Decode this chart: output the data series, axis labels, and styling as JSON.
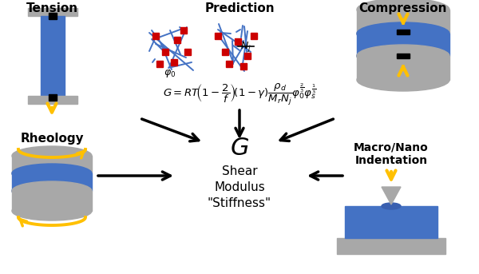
{
  "bg_color": "#ffffff",
  "blue": "#4472C4",
  "gray": "#A8A8A8",
  "yellow": "#FFC000",
  "black": "#000000",
  "red": "#CC0000",
  "label_tension": "Tension",
  "label_rheology": "Rheology",
  "label_prediction": "Prediction",
  "label_compression": "Compression",
  "label_indentation": "Macro/Nano\nIndentation",
  "label_G": "$\\mathit{G}$",
  "label_shear": "Shear\nModulus\n\"Stiffness\""
}
